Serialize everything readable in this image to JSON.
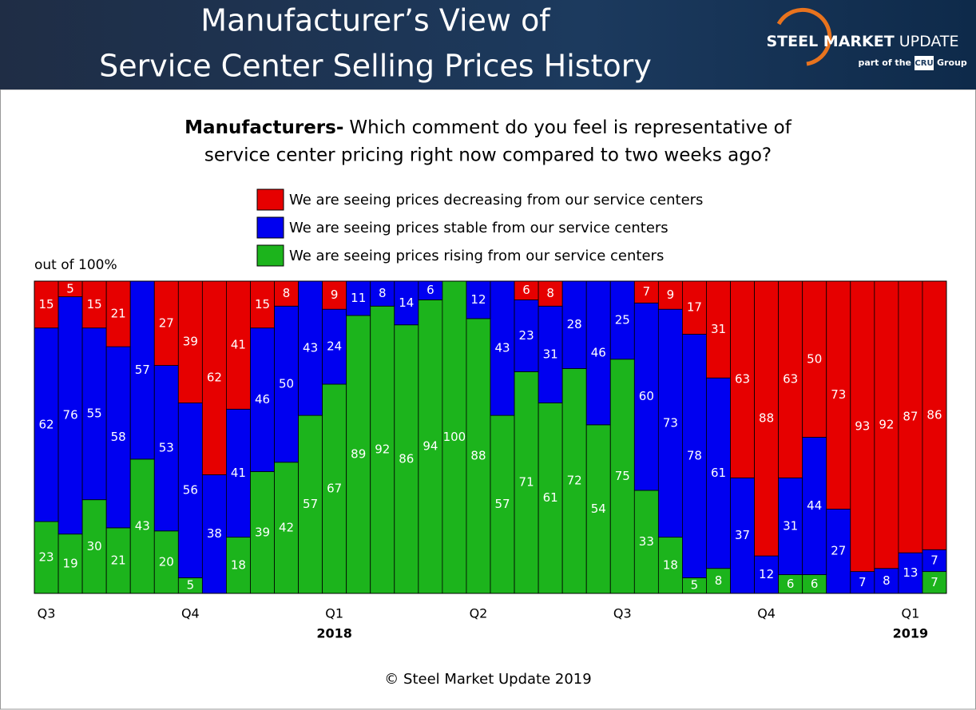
{
  "header": {
    "title_lines": [
      "Manufacturer’s View of",
      "Service Center Selling Prices History"
    ],
    "logo_bold": "STEEL MARKET",
    "logo_light": "UPDATE",
    "logo_part": "part of the",
    "logo_cru": "CRU",
    "logo_group": "Group"
  },
  "chart_data": {
    "type": "stacked-bar",
    "subtitle_bold": "Manufacturers-",
    "subtitle_lines": [
      "Which comment do you feel is representative of",
      "service center pricing right now compared to two weeks ago?"
    ],
    "y_note": "out of 100%",
    "ylim": [
      0,
      100
    ],
    "categories": [
      "Q3",
      null,
      null,
      null,
      null,
      null,
      "Q4",
      null,
      null,
      null,
      null,
      null,
      "Q1",
      null,
      null,
      null,
      null,
      null,
      "Q2",
      null,
      null,
      null,
      null,
      null,
      "Q3",
      null,
      null,
      null,
      null,
      null,
      "Q4",
      null,
      null,
      null,
      null,
      null,
      "Q1",
      null
    ],
    "year_labels": [
      null,
      null,
      null,
      null,
      null,
      null,
      null,
      null,
      null,
      null,
      null,
      null,
      "2018",
      null,
      null,
      null,
      null,
      null,
      null,
      null,
      null,
      null,
      null,
      null,
      null,
      null,
      null,
      null,
      null,
      null,
      null,
      null,
      null,
      null,
      null,
      null,
      "2019",
      null
    ],
    "series": [
      {
        "name": "We are seeing prices decreasing from our service centers",
        "color": "#e60000",
        "values": [
          15,
          5,
          15,
          21,
          0,
          27,
          39,
          62,
          41,
          15,
          8,
          0,
          9,
          0,
          0,
          0,
          0,
          0,
          0,
          0,
          6,
          8,
          0,
          0,
          0,
          7,
          9,
          17,
          31,
          63,
          88,
          63,
          50,
          73,
          93,
          92,
          87,
          86
        ]
      },
      {
        "name": "We are seeing prices stable from our service centers",
        "color": "#0000f0",
        "values": [
          62,
          76,
          55,
          58,
          57,
          53,
          56,
          38,
          41,
          46,
          50,
          43,
          24,
          11,
          8,
          14,
          6,
          0,
          12,
          43,
          23,
          31,
          28,
          46,
          25,
          60,
          73,
          78,
          61,
          37,
          12,
          31,
          44,
          27,
          7,
          8,
          13,
          7
        ]
      },
      {
        "name": "We are seeing prices rising from our service centers",
        "color": "#1cb41c",
        "values": [
          23,
          19,
          30,
          21,
          43,
          20,
          5,
          0,
          18,
          39,
          42,
          57,
          67,
          89,
          92,
          86,
          94,
          100,
          88,
          57,
          71,
          61,
          72,
          54,
          75,
          33,
          18,
          5,
          8,
          0,
          0,
          6,
          6,
          0,
          0,
          0,
          0,
          7
        ]
      }
    ],
    "footer": "© Steel Market Update 2019"
  }
}
